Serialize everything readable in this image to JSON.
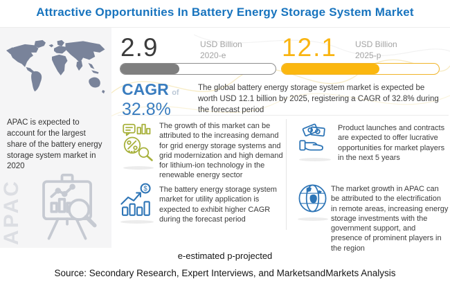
{
  "title": "Attractive Opportunities In Battery Energy Storage System Market",
  "colors": {
    "title_blue": "#1874BE",
    "accent_blue": "#2E75B6",
    "gold": "#F9B411",
    "bar_gray": "#7F7F7F",
    "sidebar_bg": "#F5F5F6",
    "map_gray": "#79839A",
    "light_icon_gray": "#C6CAD2",
    "green_icon": "#A7B13B"
  },
  "sidebar": {
    "caption": "APAC is expected to account for the largest share of the battery energy storage system market in 2020",
    "region_label": "APAC"
  },
  "stats": [
    {
      "value": "2.9",
      "unit": "USD Billion",
      "year": "2020-e",
      "fill_percent": 38
    },
    {
      "value": "12.1",
      "unit": "USD Billion",
      "year": "2025-p",
      "fill_percent": 62
    }
  ],
  "cagr": {
    "label": "CAGR",
    "of_label": "of",
    "value": "32.8%"
  },
  "summary": "The global battery energy storage system market is expected be worth USD 12.1 billion by 2025, registering a CAGR of 32.8% during the forecast period",
  "insights": [
    {
      "icon": "market-analysis-icon",
      "text": "The growth of this market can be attributed to the increasing demand for grid energy storage systems and grid modernization and high demand for lithium-ion technology in the renewable energy sector"
    },
    {
      "icon": "money-hand-icon",
      "text": "Product launches and contracts are expected to offer lucrative opportunities for market players in the next 5 years"
    },
    {
      "icon": "utility-growth-icon",
      "text": "The battery energy storage system market for utility application is expected to exhibit higher CAGR during the forecast period"
    },
    {
      "icon": "globe-icon",
      "text": "The market growth in APAC can be attributed to the electrification in remote areas, increasing energy storage investments with the government support, and presence of prominent players in the region"
    }
  ],
  "footnote": "e-estimated p-projected",
  "source": "Source: Secondary Research, Expert Interviews, and MarketsandMarkets Analysis",
  "chart_data": {
    "type": "bar",
    "categories": [
      "2020-e",
      "2025-p"
    ],
    "values": [
      2.9,
      12.1
    ],
    "unit": "USD Billion",
    "title": "Attractive Opportunities In Battery Energy Storage System Market",
    "annotations": [
      "CAGR of 32.8%",
      "e-estimated p-projected"
    ],
    "legend_position": "none",
    "bar_fill_percent": [
      38,
      62
    ]
  }
}
